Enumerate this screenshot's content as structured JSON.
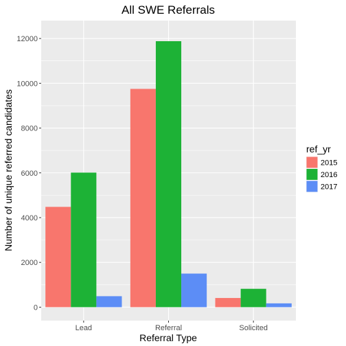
{
  "chart_data": {
    "type": "bar",
    "title": "All SWE Referrals",
    "xlabel": "Referral Type",
    "ylabel": "Number of unique referred candidates",
    "categories": [
      "Lead",
      "Referral",
      "Solicited"
    ],
    "series": [
      {
        "name": "2015",
        "values": [
          4480,
          9750,
          410
        ],
        "color": "#f8766d"
      },
      {
        "name": "2016",
        "values": [
          6010,
          11880,
          820
        ],
        "color": "#1db236"
      },
      {
        "name": "2017",
        "values": [
          490,
          1500,
          170
        ],
        "color": "#5c8df6"
      }
    ],
    "yticks": [
      0,
      2000,
      4000,
      6000,
      8000,
      10000,
      12000
    ],
    "ylim": [
      -600,
      12800
    ],
    "legend": {
      "title": "ref_yr",
      "placement": "right"
    },
    "grid": true,
    "panel_background": "#ebebeb",
    "grid_color": "#ffffff"
  }
}
